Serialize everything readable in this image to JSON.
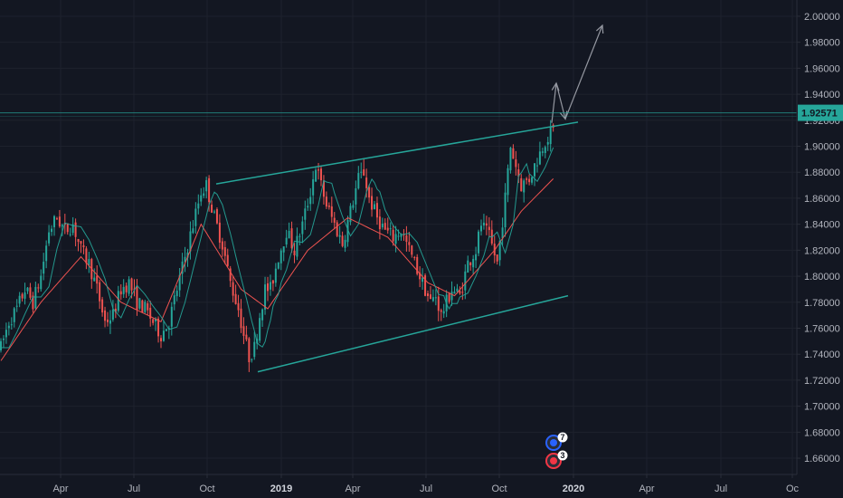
{
  "chart_data": {
    "type": "candlestick",
    "x_tick_labels": [
      "Apr",
      "Jul",
      "Oct",
      "2019",
      "Apr",
      "Jul",
      "Oct",
      "2020",
      "Apr",
      "Jul",
      "Oc"
    ],
    "x_tick_bold": [
      false,
      false,
      false,
      true,
      false,
      false,
      false,
      true,
      false,
      false,
      false
    ],
    "y_tick_labels": [
      "1.66000",
      "1.68000",
      "1.70000",
      "1.72000",
      "1.74000",
      "1.76000",
      "1.78000",
      "1.80000",
      "1.82000",
      "1.84000",
      "1.86000",
      "1.88000",
      "1.90000",
      "1.92000",
      "1.94000",
      "1.96000",
      "1.98000",
      "2.00000"
    ],
    "y_ticks": [
      1.66,
      1.68,
      1.7,
      1.72,
      1.74,
      1.76,
      1.78,
      1.8,
      1.82,
      1.84,
      1.86,
      1.88,
      1.9,
      1.92,
      1.94,
      1.96,
      1.98,
      2.0
    ],
    "ylim": [
      1.6475,
      2.0125
    ],
    "last_price": 1.92571,
    "last_price_label": "1.92571",
    "price_path": [
      [
        0,
        1.745
      ],
      [
        3,
        1.765
      ],
      [
        6,
        1.775
      ],
      [
        9,
        1.79
      ],
      [
        12,
        1.78
      ],
      [
        15,
        1.8
      ],
      [
        18,
        1.835
      ],
      [
        21,
        1.845
      ],
      [
        24,
        1.835
      ],
      [
        27,
        1.84
      ],
      [
        30,
        1.82
      ],
      [
        33,
        1.81
      ],
      [
        36,
        1.79
      ],
      [
        39,
        1.765
      ],
      [
        42,
        1.77
      ],
      [
        45,
        1.79
      ],
      [
        48,
        1.795
      ],
      [
        51,
        1.78
      ],
      [
        54,
        1.775
      ],
      [
        57,
        1.765
      ],
      [
        60,
        1.755
      ],
      [
        63,
        1.765
      ],
      [
        66,
        1.79
      ],
      [
        69,
        1.815
      ],
      [
        72,
        1.84
      ],
      [
        75,
        1.865
      ],
      [
        77,
        1.87
      ],
      [
        80,
        1.845
      ],
      [
        83,
        1.825
      ],
      [
        86,
        1.795
      ],
      [
        89,
        1.775
      ],
      [
        91,
        1.755
      ],
      [
        93,
        1.738
      ],
      [
        95,
        1.745
      ],
      [
        97,
        1.77
      ],
      [
        99,
        1.79
      ],
      [
        101,
        1.79
      ],
      [
        104,
        1.815
      ],
      [
        107,
        1.835
      ],
      [
        110,
        1.82
      ],
      [
        113,
        1.84
      ],
      [
        116,
        1.865
      ],
      [
        118,
        1.885
      ],
      [
        120,
        1.87
      ],
      [
        122,
        1.855
      ],
      [
        125,
        1.84
      ],
      [
        128,
        1.825
      ],
      [
        131,
        1.85
      ],
      [
        134,
        1.875
      ],
      [
        136,
        1.88
      ],
      [
        138,
        1.86
      ],
      [
        141,
        1.845
      ],
      [
        144,
        1.835
      ],
      [
        147,
        1.83
      ],
      [
        150,
        1.835
      ],
      [
        153,
        1.82
      ],
      [
        156,
        1.805
      ],
      [
        159,
        1.79
      ],
      [
        161,
        1.78
      ],
      [
        163,
        1.785
      ],
      [
        165,
        1.77
      ],
      [
        167,
        1.78
      ],
      [
        169,
        1.79
      ],
      [
        172,
        1.785
      ],
      [
        175,
        1.81
      ],
      [
        178,
        1.82
      ],
      [
        180,
        1.84
      ],
      [
        183,
        1.83
      ],
      [
        186,
        1.81
      ],
      [
        189,
        1.86
      ],
      [
        191,
        1.9
      ],
      [
        193,
        1.885
      ],
      [
        195,
        1.87
      ],
      [
        198,
        1.875
      ],
      [
        201,
        1.89
      ],
      [
        204,
        1.905
      ],
      [
        207,
        1.912
      ]
    ],
    "ma_path": [
      [
        0,
        1.735
      ],
      [
        15,
        1.78
      ],
      [
        30,
        1.815
      ],
      [
        45,
        1.78
      ],
      [
        60,
        1.765
      ],
      [
        75,
        1.84
      ],
      [
        90,
        1.79
      ],
      [
        100,
        1.775
      ],
      [
        115,
        1.82
      ],
      [
        130,
        1.845
      ],
      [
        145,
        1.83
      ],
      [
        160,
        1.795
      ],
      [
        170,
        1.785
      ],
      [
        185,
        1.82
      ],
      [
        195,
        1.85
      ],
      [
        207,
        1.875
      ]
    ],
    "channel_upper": [
      [
        239,
        1.871
      ],
      [
        639,
        1.9185
      ]
    ],
    "channel_lower": [
      [
        285,
        1.7265
      ],
      [
        628,
        1.785
      ]
    ],
    "projection_zigzag": [
      [
        610,
        1.918
      ],
      [
        615,
        1.9485
      ],
      [
        625,
        1.921
      ]
    ],
    "projection_arrow": [
      [
        625,
        1.921
      ],
      [
        666,
        1.993
      ]
    ],
    "event_badges": [
      {
        "count": "7",
        "color": "#2962ff"
      },
      {
        "count": "3",
        "color": "#f23645"
      }
    ],
    "colors": {
      "up": "#26a69a",
      "down": "#ef5350",
      "ma_fast": "#26a69a",
      "ma_slow": "#ef5350",
      "channel": "#26a69a",
      "projection": "#9598a1",
      "price_line": "#26a69a",
      "grid": "#1e222d",
      "background": "#131722"
    }
  }
}
